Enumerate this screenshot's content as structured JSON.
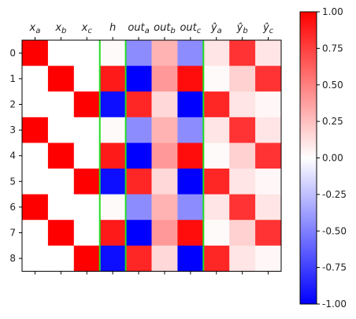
{
  "chart_data": {
    "type": "heatmap",
    "title": "",
    "xlabel": "",
    "ylabel": "",
    "columns": [
      "x_a",
      "x_b",
      "x_c",
      "h",
      "out_a",
      "out_b",
      "out_c",
      "ŷ_a",
      "ŷ_b",
      "ŷ_c"
    ],
    "column_labels": [
      {
        "base": "x",
        "sub": "a",
        "hat": false
      },
      {
        "base": "x",
        "sub": "b",
        "hat": false
      },
      {
        "base": "x",
        "sub": "c",
        "hat": false
      },
      {
        "base": "h",
        "sub": "",
        "hat": false
      },
      {
        "base": "out",
        "sub": "a",
        "hat": false
      },
      {
        "base": "out",
        "sub": "b",
        "hat": false
      },
      {
        "base": "out",
        "sub": "c",
        "hat": false
      },
      {
        "base": "y",
        "sub": "a",
        "hat": true
      },
      {
        "base": "y",
        "sub": "b",
        "hat": true
      },
      {
        "base": "y",
        "sub": "c",
        "hat": true
      }
    ],
    "rows": [
      "0",
      "1",
      "2",
      "3",
      "4",
      "5",
      "6",
      "7",
      "8"
    ],
    "values": [
      [
        1,
        0,
        0,
        0.02,
        -0.45,
        0.3,
        -0.45,
        0.1,
        0.8,
        0.1
      ],
      [
        0,
        1,
        0,
        0.9,
        -1.0,
        0.4,
        0.95,
        0.02,
        0.18,
        0.8
      ],
      [
        0,
        0,
        1,
        -0.95,
        0.85,
        0.15,
        -1.0,
        0.85,
        0.1,
        0.03
      ],
      [
        1,
        0,
        0,
        0.02,
        -0.45,
        0.3,
        -0.45,
        0.1,
        0.8,
        0.1
      ],
      [
        0,
        1,
        0,
        0.9,
        -1.0,
        0.4,
        0.95,
        0.02,
        0.18,
        0.8
      ],
      [
        0,
        0,
        1,
        -0.95,
        0.85,
        0.15,
        -1.0,
        0.85,
        0.1,
        0.03
      ],
      [
        1,
        0,
        0,
        0.02,
        -0.45,
        0.3,
        -0.45,
        0.1,
        0.8,
        0.1
      ],
      [
        0,
        1,
        0,
        0.9,
        -1.0,
        0.4,
        0.95,
        0.02,
        0.18,
        0.8
      ],
      [
        0,
        0,
        1,
        -0.95,
        0.85,
        0.15,
        -1.0,
        0.85,
        0.1,
        0.03
      ]
    ],
    "separators_after_column": [
      3,
      4,
      7
    ],
    "separator_color": "#22dd22",
    "colormap": "bwr",
    "vmin": -1.0,
    "vmax": 1.0,
    "colorbar_ticks": [
      "1.00",
      "0.75",
      "0.50",
      "0.25",
      "0.00",
      "-0.25",
      "-0.50",
      "-0.75",
      "-1.00"
    ],
    "colorbar_tick_values": [
      1.0,
      0.75,
      0.5,
      0.25,
      0.0,
      -0.25,
      -0.5,
      -0.75,
      -1.0
    ],
    "grid": false
  }
}
